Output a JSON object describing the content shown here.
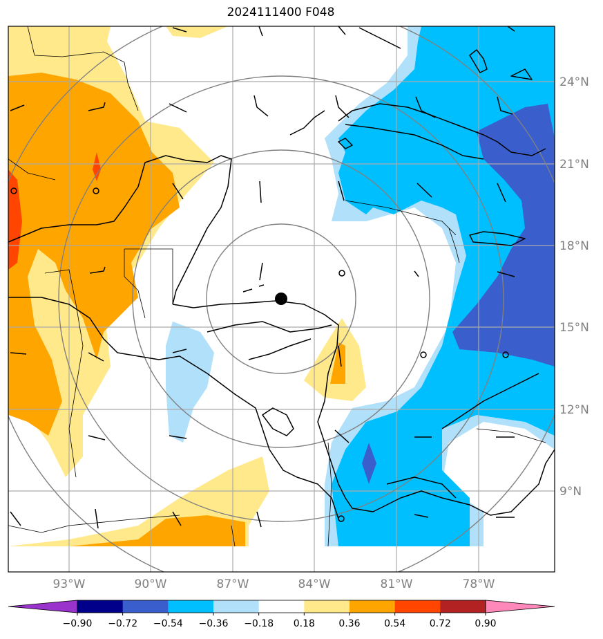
{
  "title": "2024111400 F048",
  "map": {
    "lat_labels": [
      "24°N",
      "21°N",
      "18°N",
      "15°N",
      "12°N",
      "9°N"
    ],
    "lon_labels": [
      "93°W",
      "90°W",
      "87°W",
      "84°W",
      "81°W",
      "78°W"
    ],
    "center_marker": "storm-center-dot"
  },
  "colorbar": {
    "ticks": [
      "−0.90",
      "−0.72",
      "−0.54",
      "−0.36",
      "−0.18",
      "0.18",
      "0.36",
      "0.54",
      "0.72",
      "0.90"
    ],
    "colors": [
      "#9933cc",
      "#00008b",
      "#3a5fcd",
      "#00bfff",
      "#b0e0fa",
      "#ffffff",
      "#ffe98a",
      "#ffa500",
      "#ff4500",
      "#b22222",
      "#ff88bb"
    ],
    "extend": "both"
  },
  "colors": {
    "neg_strong": "#3a5fcd",
    "neg_mid": "#00bfff",
    "neg_light": "#b0e0fa",
    "pos_light": "#ffe98a",
    "pos_mid": "#ffa500",
    "pos_strong": "#ff4500"
  }
}
